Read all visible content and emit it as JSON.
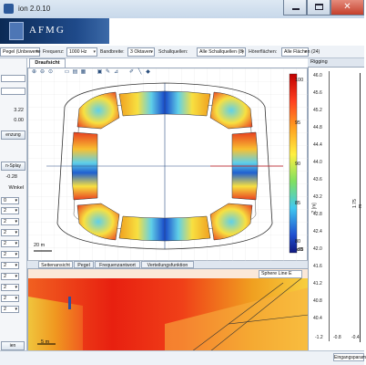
{
  "window": {
    "title": "ion 2.0.10"
  },
  "logo": {
    "text": "AFMG"
  },
  "toolbar": {
    "source_value": "Pegel (Unbewerte",
    "freq_label": "Frequenz:",
    "freq_value": "1000 Hz",
    "band_label": "Bandbreite:",
    "band_value": "3 Oktaven",
    "sources_label": "Schallquellen:",
    "sources_value": "Alle Schallquellen (8)",
    "listener_label": "Hörerflächen:",
    "listener_value": "Alle Flächen (24)"
  },
  "left_panel": {
    "value1": "3.22",
    "value2": "0.00",
    "btn1": "enzung",
    "btn2": "n-Splay",
    "value3": "-0.28",
    "label_winkel": "Winkel",
    "rows": [
      "0",
      "2",
      "2",
      "2",
      "2",
      "2",
      "2",
      "2",
      "2",
      "2",
      "2"
    ],
    "bottom_btn": "ien"
  },
  "main_tabs": {
    "active": "Draufsicht"
  },
  "colorbar": {
    "unit": "dB",
    "ticks": [
      "100",
      "95",
      "90",
      "85",
      "80"
    ]
  },
  "scale": {
    "top": "20 m",
    "bottom": "5 m"
  },
  "bottom_tabs": [
    "Seitenansicht",
    "Pegel",
    "Frequenzantwort",
    "Verteilungsfunktion"
  ],
  "side_view": {
    "dropdown": "Sphere Line E"
  },
  "rigging": {
    "title": "Rigging",
    "y_ticks": [
      "46.0",
      "45.6",
      "45.2",
      "44.8",
      "44.4",
      "44.0",
      "43.6",
      "43.2",
      "42.8",
      "42.4",
      "42.0",
      "41.6",
      "41.2",
      "40.8",
      "40.4"
    ],
    "z_label": "Z [m]",
    "length_label": "1.75 m",
    "x_ticks": [
      "-1.2",
      "-0.8",
      "-0.4"
    ],
    "footer": "Eingangsparam"
  },
  "colors": {
    "hot": "#e02010",
    "warm": "#f8a020",
    "mid": "#f0e040",
    "cool": "#40c8e0",
    "cold": "#1040c0"
  }
}
